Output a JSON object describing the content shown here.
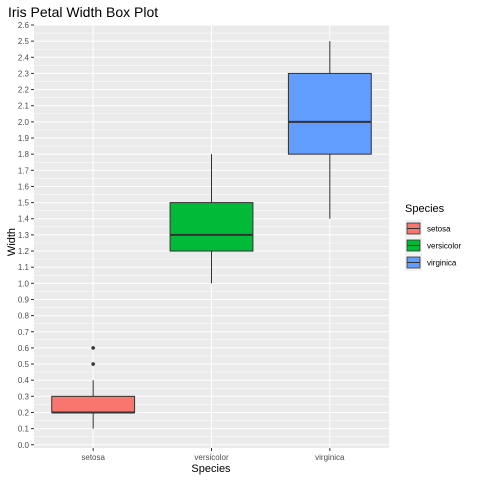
{
  "chart_data": {
    "type": "box",
    "title": "Iris Petal Width Box Plot",
    "xlabel": "Species",
    "ylabel": "Width",
    "ylim": [
      -0.02,
      2.6
    ],
    "yticks": [
      0.0,
      0.1,
      0.2,
      0.3,
      0.4,
      0.5,
      0.6,
      0.7,
      0.8,
      0.9,
      1.0,
      1.1,
      1.2,
      1.3,
      1.4,
      1.5,
      1.6,
      1.7,
      1.8,
      1.9,
      2.0,
      2.1,
      2.2,
      2.3,
      2.4,
      2.5,
      2.6
    ],
    "ytick_labels": [
      "0.0",
      "0.1",
      "0.2",
      "0.3",
      "0.4",
      "0.5",
      "0.6",
      "0.7",
      "0.8",
      "0.9",
      "1.0",
      "1.1",
      "1.2",
      "1.3",
      "1.4",
      "1.5",
      "1.6",
      "1.7",
      "1.8",
      "1.9",
      "2.0",
      "2.1",
      "2.2",
      "2.3",
      "2.4",
      "2.5",
      "2.6"
    ],
    "grid": true,
    "categories": [
      "setosa",
      "versicolor",
      "virginica"
    ],
    "boxes": [
      {
        "category": "setosa",
        "whisker_low": 0.1,
        "q1": 0.2,
        "median": 0.2,
        "q3": 0.3,
        "whisker_high": 0.4,
        "outliers": [
          0.5,
          0.6
        ],
        "color": "#F8766D"
      },
      {
        "category": "versicolor",
        "whisker_low": 1.0,
        "q1": 1.2,
        "median": 1.3,
        "q3": 1.5,
        "whisker_high": 1.8,
        "outliers": [],
        "color": "#00BA38"
      },
      {
        "category": "virginica",
        "whisker_low": 1.4,
        "q1": 1.8,
        "median": 2.0,
        "q3": 2.3,
        "whisker_high": 2.5,
        "outliers": [],
        "color": "#619CFF"
      }
    ],
    "legend": {
      "title": "Species",
      "position": "right",
      "entries": [
        {
          "label": "setosa",
          "color": "#F8766D"
        },
        {
          "label": "versicolor",
          "color": "#00BA38"
        },
        {
          "label": "virginica",
          "color": "#619CFF"
        }
      ]
    },
    "panel_color": "#EBEBEB",
    "grid_color": "#FFFFFF"
  }
}
